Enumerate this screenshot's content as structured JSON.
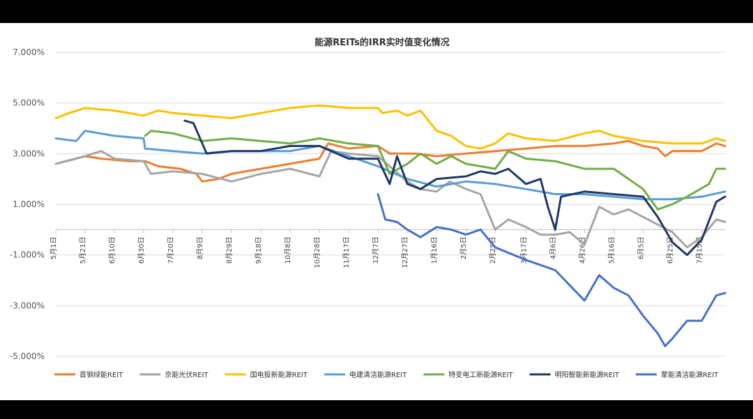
{
  "chart_data": {
    "type": "line",
    "title": "能源REITs的IRR实时值变化情况",
    "ylim": [
      -5,
      7
    ],
    "yticks": [
      "7.000%",
      "5.000%",
      "3.000%",
      "1.000%",
      "-1.000%",
      "-3.000%",
      "-5.000%"
    ],
    "ytick_values": [
      7,
      5,
      3,
      1,
      -1,
      -3,
      -5
    ],
    "x_start": "2023-05-01",
    "x_end": "2024-07-31",
    "xticks": [
      "5月1日",
      "5月21日",
      "6月10日",
      "6月30日",
      "7月20日",
      "8月9日",
      "8月29日",
      "9月18日",
      "10月8日",
      "10月28日",
      "11月17日",
      "12月7日",
      "12月27日",
      "1月16日",
      "2月5日",
      "2月25日",
      "3月17日",
      "4月6日",
      "4月26日",
      "5月16日",
      "6月5日",
      "6月25日",
      "7月15日"
    ],
    "xtick_dates": [
      "2023-05-01",
      "2023-05-21",
      "2023-06-10",
      "2023-06-30",
      "2023-07-20",
      "2023-08-09",
      "2023-08-29",
      "2023-09-18",
      "2023-10-08",
      "2023-10-28",
      "2023-11-17",
      "2023-12-07",
      "2023-12-27",
      "2024-01-16",
      "2024-02-05",
      "2024-02-25",
      "2024-03-17",
      "2024-04-06",
      "2024-04-26",
      "2024-05-16",
      "2024-06-05",
      "2024-06-25",
      "2024-07-15"
    ],
    "legend_position": "bottom",
    "grid": true,
    "series": [
      {
        "name": "首钢绿能REIT",
        "color": "#ED7D31",
        "points": [
          [
            "2023-05-01",
            2.6
          ],
          [
            "2023-05-15",
            2.8
          ],
          [
            "2023-05-21",
            2.9
          ],
          [
            "2023-06-01",
            2.8
          ],
          [
            "2023-06-20",
            2.7
          ],
          [
            "2023-07-01",
            2.7
          ],
          [
            "2023-07-10",
            2.5
          ],
          [
            "2023-07-25",
            2.4
          ],
          [
            "2023-08-05",
            2.2
          ],
          [
            "2023-08-09",
            1.9
          ],
          [
            "2023-08-20",
            2.0
          ],
          [
            "2023-08-29",
            2.2
          ],
          [
            "2023-09-18",
            2.4
          ],
          [
            "2023-10-08",
            2.6
          ],
          [
            "2023-10-28",
            2.8
          ],
          [
            "2023-11-03",
            3.4
          ],
          [
            "2023-11-17",
            3.2
          ],
          [
            "2023-12-07",
            3.3
          ],
          [
            "2023-12-15",
            3.0
          ],
          [
            "2024-01-01",
            3.0
          ],
          [
            "2024-01-16",
            2.9
          ],
          [
            "2024-02-05",
            3.0
          ],
          [
            "2024-02-25",
            3.1
          ],
          [
            "2024-03-17",
            3.2
          ],
          [
            "2024-04-06",
            3.3
          ],
          [
            "2024-04-26",
            3.3
          ],
          [
            "2024-05-16",
            3.4
          ],
          [
            "2024-05-26",
            3.5
          ],
          [
            "2024-06-05",
            3.3
          ],
          [
            "2024-06-15",
            3.2
          ],
          [
            "2024-06-20",
            2.9
          ],
          [
            "2024-06-25",
            3.1
          ],
          [
            "2024-07-15",
            3.1
          ],
          [
            "2024-07-25",
            3.4
          ],
          [
            "2024-07-31",
            3.3
          ]
        ]
      },
      {
        "name": "京能光伏REIT",
        "color": "#A5A5A5",
        "points": [
          [
            "2023-05-01",
            2.6
          ],
          [
            "2023-05-21",
            2.9
          ],
          [
            "2023-06-01",
            3.1
          ],
          [
            "2023-06-10",
            2.8
          ],
          [
            "2023-06-30",
            2.7
          ],
          [
            "2023-07-05",
            2.2
          ],
          [
            "2023-07-20",
            2.3
          ],
          [
            "2023-08-09",
            2.2
          ],
          [
            "2023-08-29",
            1.9
          ],
          [
            "2023-09-18",
            2.2
          ],
          [
            "2023-10-08",
            2.4
          ],
          [
            "2023-10-28",
            2.1
          ],
          [
            "2023-11-05",
            3.1
          ],
          [
            "2023-11-17",
            3.0
          ],
          [
            "2023-12-07",
            2.9
          ],
          [
            "2023-12-15",
            2.5
          ],
          [
            "2023-12-27",
            1.9
          ],
          [
            "2024-01-05",
            1.6
          ],
          [
            "2024-01-16",
            1.5
          ],
          [
            "2024-01-25",
            1.9
          ],
          [
            "2024-02-05",
            1.6
          ],
          [
            "2024-02-15",
            1.4
          ],
          [
            "2024-02-25",
            0.0
          ],
          [
            "2024-03-05",
            0.4
          ],
          [
            "2024-03-17",
            0.1
          ],
          [
            "2024-03-27",
            -0.2
          ],
          [
            "2024-04-06",
            -0.2
          ],
          [
            "2024-04-16",
            -0.1
          ],
          [
            "2024-04-26",
            -0.6
          ],
          [
            "2024-05-06",
            0.9
          ],
          [
            "2024-05-16",
            0.6
          ],
          [
            "2024-05-26",
            0.8
          ],
          [
            "2024-06-05",
            0.5
          ],
          [
            "2024-06-15",
            0.2
          ],
          [
            "2024-06-25",
            -0.1
          ],
          [
            "2024-07-05",
            -0.7
          ],
          [
            "2024-07-15",
            -0.3
          ],
          [
            "2024-07-25",
            0.4
          ],
          [
            "2024-07-31",
            0.3
          ]
        ]
      },
      {
        "name": "国电投新能源REIT",
        "color": "#FFC000",
        "points": [
          [
            "2023-05-01",
            4.4
          ],
          [
            "2023-05-10",
            4.6
          ],
          [
            "2023-05-21",
            4.8
          ],
          [
            "2023-06-10",
            4.7
          ],
          [
            "2023-06-30",
            4.5
          ],
          [
            "2023-07-10",
            4.7
          ],
          [
            "2023-07-20",
            4.6
          ],
          [
            "2023-08-09",
            4.5
          ],
          [
            "2023-08-29",
            4.4
          ],
          [
            "2023-09-18",
            4.6
          ],
          [
            "2023-10-08",
            4.8
          ],
          [
            "2023-10-28",
            4.9
          ],
          [
            "2023-11-17",
            4.8
          ],
          [
            "2023-12-07",
            4.8
          ],
          [
            "2023-12-10",
            4.6
          ],
          [
            "2023-12-20",
            4.7
          ],
          [
            "2023-12-27",
            4.5
          ],
          [
            "2024-01-05",
            4.7
          ],
          [
            "2024-01-16",
            3.9
          ],
          [
            "2024-01-26",
            3.7
          ],
          [
            "2024-02-05",
            3.3
          ],
          [
            "2024-02-15",
            3.2
          ],
          [
            "2024-02-25",
            3.4
          ],
          [
            "2024-03-05",
            3.8
          ],
          [
            "2024-03-17",
            3.6
          ],
          [
            "2024-04-06",
            3.5
          ],
          [
            "2024-04-26",
            3.8
          ],
          [
            "2024-05-06",
            3.9
          ],
          [
            "2024-05-16",
            3.7
          ],
          [
            "2024-06-05",
            3.5
          ],
          [
            "2024-06-25",
            3.4
          ],
          [
            "2024-07-15",
            3.4
          ],
          [
            "2024-07-25",
            3.6
          ],
          [
            "2024-07-31",
            3.5
          ]
        ]
      },
      {
        "name": "电建清洁能源REIT",
        "color": "#5B9BD5",
        "points": [
          [
            "2023-05-01",
            3.6
          ],
          [
            "2023-05-15",
            3.5
          ],
          [
            "2023-05-21",
            3.9
          ],
          [
            "2023-06-10",
            3.7
          ],
          [
            "2023-06-30",
            3.6
          ],
          [
            "2023-07-01",
            3.2
          ],
          [
            "2023-07-20",
            3.1
          ],
          [
            "2023-08-09",
            3.0
          ],
          [
            "2023-08-29",
            3.1
          ],
          [
            "2023-09-18",
            3.1
          ],
          [
            "2023-10-08",
            3.1
          ],
          [
            "2023-10-28",
            3.3
          ],
          [
            "2023-11-17",
            2.9
          ],
          [
            "2023-12-07",
            2.5
          ],
          [
            "2023-12-27",
            2.0
          ],
          [
            "2024-01-16",
            1.7
          ],
          [
            "2024-02-05",
            1.9
          ],
          [
            "2024-02-25",
            1.8
          ],
          [
            "2024-03-17",
            1.6
          ],
          [
            "2024-04-06",
            1.4
          ],
          [
            "2024-04-26",
            1.4
          ],
          [
            "2024-05-16",
            1.3
          ],
          [
            "2024-06-05",
            1.2
          ],
          [
            "2024-06-25",
            1.2
          ],
          [
            "2024-07-15",
            1.3
          ],
          [
            "2024-07-31",
            1.5
          ]
        ]
      },
      {
        "name": "特变电工新能源REIT",
        "color": "#70AD47",
        "points": [
          [
            "2023-07-01",
            3.7
          ],
          [
            "2023-07-05",
            3.9
          ],
          [
            "2023-07-20",
            3.8
          ],
          [
            "2023-08-09",
            3.5
          ],
          [
            "2023-08-29",
            3.6
          ],
          [
            "2023-09-18",
            3.5
          ],
          [
            "2023-10-08",
            3.4
          ],
          [
            "2023-10-28",
            3.6
          ],
          [
            "2023-11-17",
            3.4
          ],
          [
            "2023-12-07",
            3.3
          ],
          [
            "2023-12-15",
            2.2
          ],
          [
            "2023-12-27",
            2.6
          ],
          [
            "2024-01-05",
            3.0
          ],
          [
            "2024-01-16",
            2.6
          ],
          [
            "2024-01-26",
            2.9
          ],
          [
            "2024-02-05",
            2.6
          ],
          [
            "2024-02-25",
            2.4
          ],
          [
            "2024-03-05",
            3.1
          ],
          [
            "2024-03-17",
            2.8
          ],
          [
            "2024-04-06",
            2.7
          ],
          [
            "2024-04-26",
            2.4
          ],
          [
            "2024-05-16",
            2.4
          ],
          [
            "2024-06-05",
            1.6
          ],
          [
            "2024-06-15",
            0.8
          ],
          [
            "2024-06-25",
            1.0
          ],
          [
            "2024-07-05",
            1.3
          ],
          [
            "2024-07-20",
            1.8
          ],
          [
            "2024-07-25",
            2.4
          ],
          [
            "2024-07-31",
            2.4
          ]
        ]
      },
      {
        "name": "明阳智能新能源REIT",
        "color": "#1F3864",
        "points": [
          [
            "2023-07-28",
            4.3
          ],
          [
            "2023-08-03",
            4.2
          ],
          [
            "2023-08-12",
            3.0
          ],
          [
            "2023-08-29",
            3.1
          ],
          [
            "2023-09-18",
            3.1
          ],
          [
            "2023-10-08",
            3.3
          ],
          [
            "2023-10-28",
            3.3
          ],
          [
            "2023-11-17",
            2.8
          ],
          [
            "2023-12-07",
            2.8
          ],
          [
            "2023-12-15",
            1.8
          ],
          [
            "2023-12-20",
            2.9
          ],
          [
            "2023-12-27",
            1.8
          ],
          [
            "2024-01-05",
            1.6
          ],
          [
            "2024-01-16",
            2.0
          ],
          [
            "2024-02-05",
            2.1
          ],
          [
            "2024-02-15",
            2.3
          ],
          [
            "2024-02-25",
            2.2
          ],
          [
            "2024-03-05",
            2.4
          ],
          [
            "2024-03-17",
            1.8
          ],
          [
            "2024-03-27",
            2.0
          ],
          [
            "2024-04-01",
            0.9
          ],
          [
            "2024-04-06",
            0.0
          ],
          [
            "2024-04-10",
            1.3
          ],
          [
            "2024-04-26",
            1.5
          ],
          [
            "2024-05-16",
            1.4
          ],
          [
            "2024-06-05",
            1.3
          ],
          [
            "2024-06-15",
            0.5
          ],
          [
            "2024-06-25",
            -0.5
          ],
          [
            "2024-07-05",
            -1.0
          ],
          [
            "2024-07-15",
            -0.4
          ],
          [
            "2024-07-25",
            1.1
          ],
          [
            "2024-07-31",
            1.3
          ]
        ]
      },
      {
        "name": "蒙能清洁能源REIT",
        "color": "#4472C4",
        "points": [
          [
            "2023-12-07",
            1.4
          ],
          [
            "2023-12-12",
            0.4
          ],
          [
            "2023-12-20",
            0.3
          ],
          [
            "2023-12-27",
            0.0
          ],
          [
            "2024-01-05",
            -0.3
          ],
          [
            "2024-01-16",
            0.1
          ],
          [
            "2024-01-26",
            0.0
          ],
          [
            "2024-02-05",
            -0.2
          ],
          [
            "2024-02-15",
            0.0
          ],
          [
            "2024-02-25",
            -0.7
          ],
          [
            "2024-03-17",
            -1.2
          ],
          [
            "2024-04-06",
            -1.6
          ],
          [
            "2024-04-16",
            -2.2
          ],
          [
            "2024-04-26",
            -2.8
          ],
          [
            "2024-05-06",
            -1.8
          ],
          [
            "2024-05-16",
            -2.3
          ],
          [
            "2024-05-26",
            -2.6
          ],
          [
            "2024-06-05",
            -3.4
          ],
          [
            "2024-06-15",
            -4.1
          ],
          [
            "2024-06-20",
            -4.6
          ],
          [
            "2024-06-25",
            -4.3
          ],
          [
            "2024-07-05",
            -3.6
          ],
          [
            "2024-07-15",
            -3.6
          ],
          [
            "2024-07-25",
            -2.6
          ],
          [
            "2024-07-31",
            -2.5
          ]
        ]
      }
    ]
  }
}
